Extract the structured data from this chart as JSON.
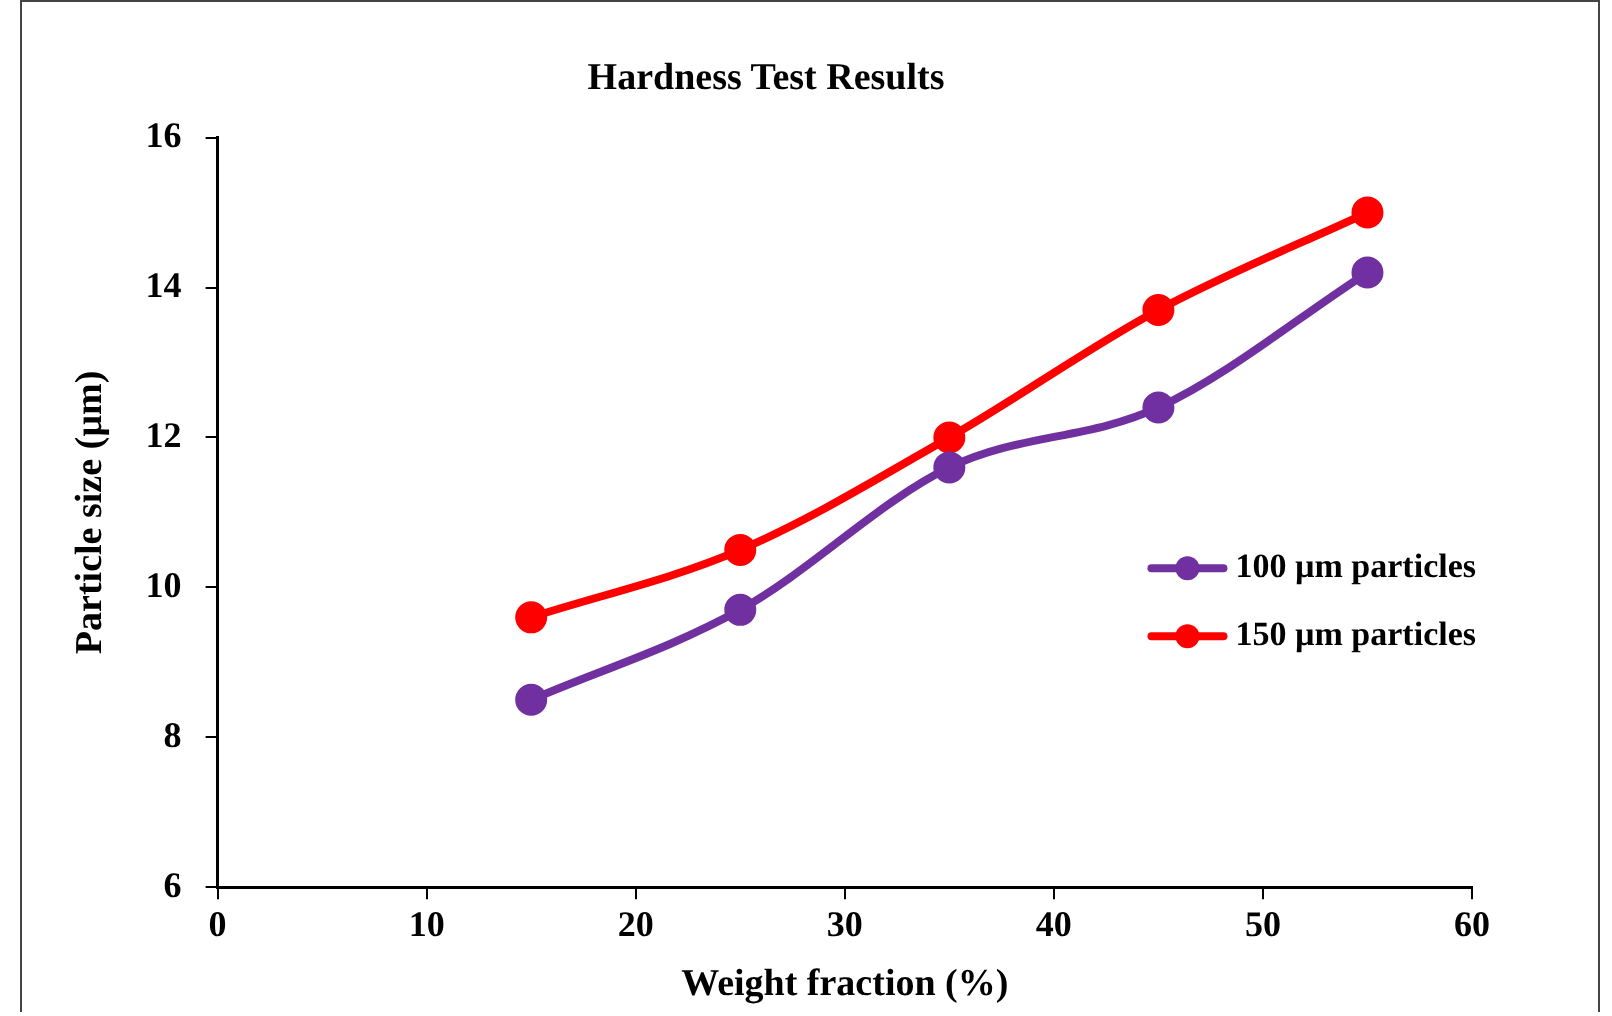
{
  "chart_data": {
    "type": "line",
    "title": "Hardness Test Results",
    "xlabel": "Weight fraction (%)",
    "ylabel": "Particle size (µm)",
    "x": [
      15,
      25,
      35,
      45,
      55
    ],
    "series": [
      {
        "name": "100 µm particles",
        "color": "#7030a0",
        "values": [
          8.5,
          9.7,
          11.6,
          12.4,
          14.2
        ]
      },
      {
        "name": "150 µm particles",
        "color": "#ff0000",
        "values": [
          9.6,
          10.5,
          12.0,
          13.7,
          15.0
        ]
      }
    ],
    "xlim": [
      0,
      60
    ],
    "xticks": [
      0,
      10,
      20,
      30,
      40,
      50,
      60
    ],
    "ylim": [
      6,
      16
    ],
    "yticks": [
      6,
      8,
      10,
      12,
      14,
      16
    ],
    "grid": false,
    "legend": "right",
    "marker": "circle",
    "line_style": "solid"
  }
}
